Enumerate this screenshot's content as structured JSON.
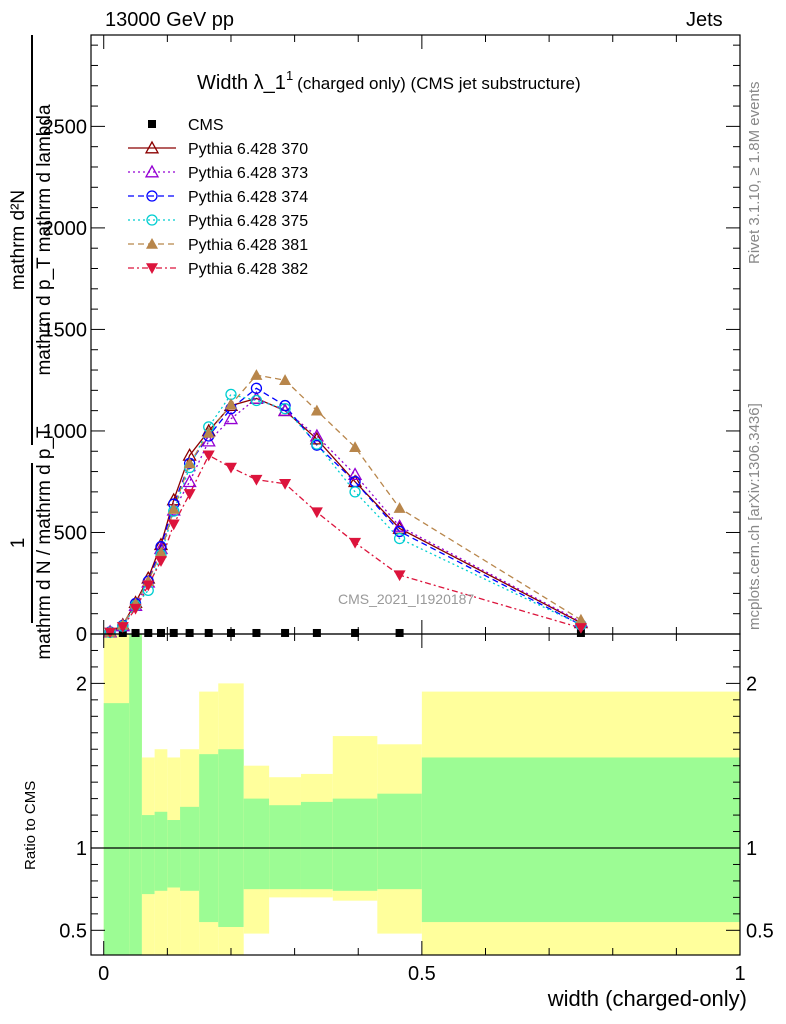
{
  "header": {
    "left": "13000 GeV pp",
    "right": "Jets"
  },
  "side_labels": {
    "rivet": "Rivet 3.1.10, ≥ 1.8M events",
    "mcplots": "mcplots.cern.ch [arXiv:1306.3436]"
  },
  "chart_data": {
    "type": "line",
    "title": "Width λ_1¹ (charged only) (CMS jet substructure)",
    "title_main": "Width λ_1",
    "title_sup": "1",
    "title_rest": "(charged only) (CMS jet substructure)",
    "watermark": "CMS_2021_I1920187",
    "xlabel": "width (charged-only)",
    "ylabel_main_lines": [
      "1",
      "mathrm d N / mathrm d p_T mathrm d λ",
      "mathrm d²N / mathrm d p_T mathrm d lambda"
    ],
    "ylabel_main": "1 / (mathrm d N / mathrm d p_T) · mathrm d²N / (mathrm d p_T mathrm d lambda)",
    "ylabel_main_top": "mathrm d²N",
    "ylabel_main_mid": "mathrm d p_T mathrm d lambda",
    "ylabel_main_bottom_num": "1",
    "ylabel_main_bottom_den": "mathrm d N / mathrm d p_T",
    "ylabel_ratio": "Ratio to CMS",
    "xlim": [
      -0.02,
      1.0
    ],
    "ylim": [
      0,
      2950
    ],
    "xticks": [
      0,
      0.5,
      1
    ],
    "xtick_labels": [
      "0",
      "0.5",
      "1"
    ],
    "yticks": [
      0,
      500,
      1000,
      1500,
      2000,
      2500
    ],
    "ytick_labels": [
      "0",
      "500",
      "1000",
      "1500",
      "2000",
      "2500"
    ],
    "ratio_ylim": [
      0.35,
      2.3
    ],
    "ratio_yticks": [
      0.5,
      1,
      2
    ],
    "ratio_ytick_labels": [
      "0.5",
      "1",
      "2"
    ],
    "x": [
      0.01,
      0.03,
      0.05,
      0.07,
      0.09,
      0.11,
      0.135,
      0.165,
      0.2,
      0.24,
      0.285,
      0.335,
      0.395,
      0.465,
      0.75
    ],
    "series": [
      {
        "name": "CMS",
        "color": "#000000",
        "marker": "square-filled",
        "dash": "none",
        "values": [
          5,
          5,
          5,
          5,
          5,
          5,
          5,
          5,
          5,
          5,
          5,
          5,
          5,
          5,
          5
        ]
      },
      {
        "name": "Pythia 6.428 370",
        "color": "#8b0000",
        "marker": "triangle-open",
        "dash": "solid",
        "values": [
          10,
          45,
          155,
          275,
          440,
          660,
          880,
          1000,
          1125,
          1160,
          1100,
          960,
          750,
          520,
          55
        ]
      },
      {
        "name": "Pythia 6.428 373",
        "color": "#9400d3",
        "marker": "triangle-open",
        "dash": "dotted",
        "values": [
          10,
          40,
          140,
          255,
          420,
          610,
          750,
          950,
          1060,
          1160,
          1100,
          975,
          785,
          530,
          60
        ]
      },
      {
        "name": "Pythia 6.428 374",
        "color": "#0000ff",
        "marker": "circle-open",
        "dash": "dashed",
        "values": [
          10,
          42,
          150,
          260,
          430,
          640,
          840,
          975,
          1110,
          1210,
          1125,
          930,
          750,
          505,
          45
        ]
      },
      {
        "name": "Pythia 6.428 375",
        "color": "#00ced1",
        "marker": "circle-open",
        "dash": "dotted",
        "values": [
          8,
          38,
          140,
          215,
          390,
          605,
          820,
          1020,
          1180,
          1150,
          1110,
          935,
          700,
          470,
          45
        ]
      },
      {
        "name": "Pythia 6.428 381",
        "color": "#b8864b",
        "marker": "triangle-filled",
        "dash": "dashed",
        "values": [
          10,
          45,
          150,
          260,
          400,
          615,
          840,
          990,
          1130,
          1275,
          1250,
          1100,
          920,
          620,
          70
        ]
      },
      {
        "name": "Pythia 6.428 382",
        "color": "#dc143c",
        "marker": "triangle-down-filled",
        "dash": "dashdot",
        "values": [
          8,
          35,
          125,
          240,
          360,
          540,
          690,
          880,
          820,
          760,
          740,
          600,
          450,
          290,
          30
        ]
      }
    ],
    "ratio_bands": {
      "x_edges": [
        0.0,
        0.04,
        0.06,
        0.08,
        0.1,
        0.12,
        0.15,
        0.18,
        0.22,
        0.26,
        0.31,
        0.36,
        0.43,
        0.5,
        1.0
      ],
      "green_upper": [
        1.88,
        2.3,
        1.2,
        1.22,
        1.17,
        1.25,
        1.57,
        1.6,
        1.3,
        1.26,
        1.28,
        1.3,
        1.33,
        1.55
      ],
      "green_lower": [
        0.35,
        0.35,
        0.72,
        0.74,
        0.76,
        0.74,
        0.55,
        0.52,
        0.75,
        0.75,
        0.75,
        0.74,
        0.75,
        0.55
      ],
      "yellow_upper": [
        2.3,
        2.3,
        1.55,
        1.6,
        1.55,
        1.6,
        1.95,
        2.0,
        1.5,
        1.43,
        1.45,
        1.68,
        1.63,
        1.95
      ],
      "yellow_lower": [
        0.35,
        0.35,
        0.35,
        0.35,
        0.35,
        0.35,
        0.35,
        0.35,
        0.48,
        0.7,
        0.7,
        0.68,
        0.48,
        0.35
      ],
      "green_color": "#9cfc94",
      "yellow_color": "#ffff9c"
    },
    "legend_position": "top-left"
  }
}
